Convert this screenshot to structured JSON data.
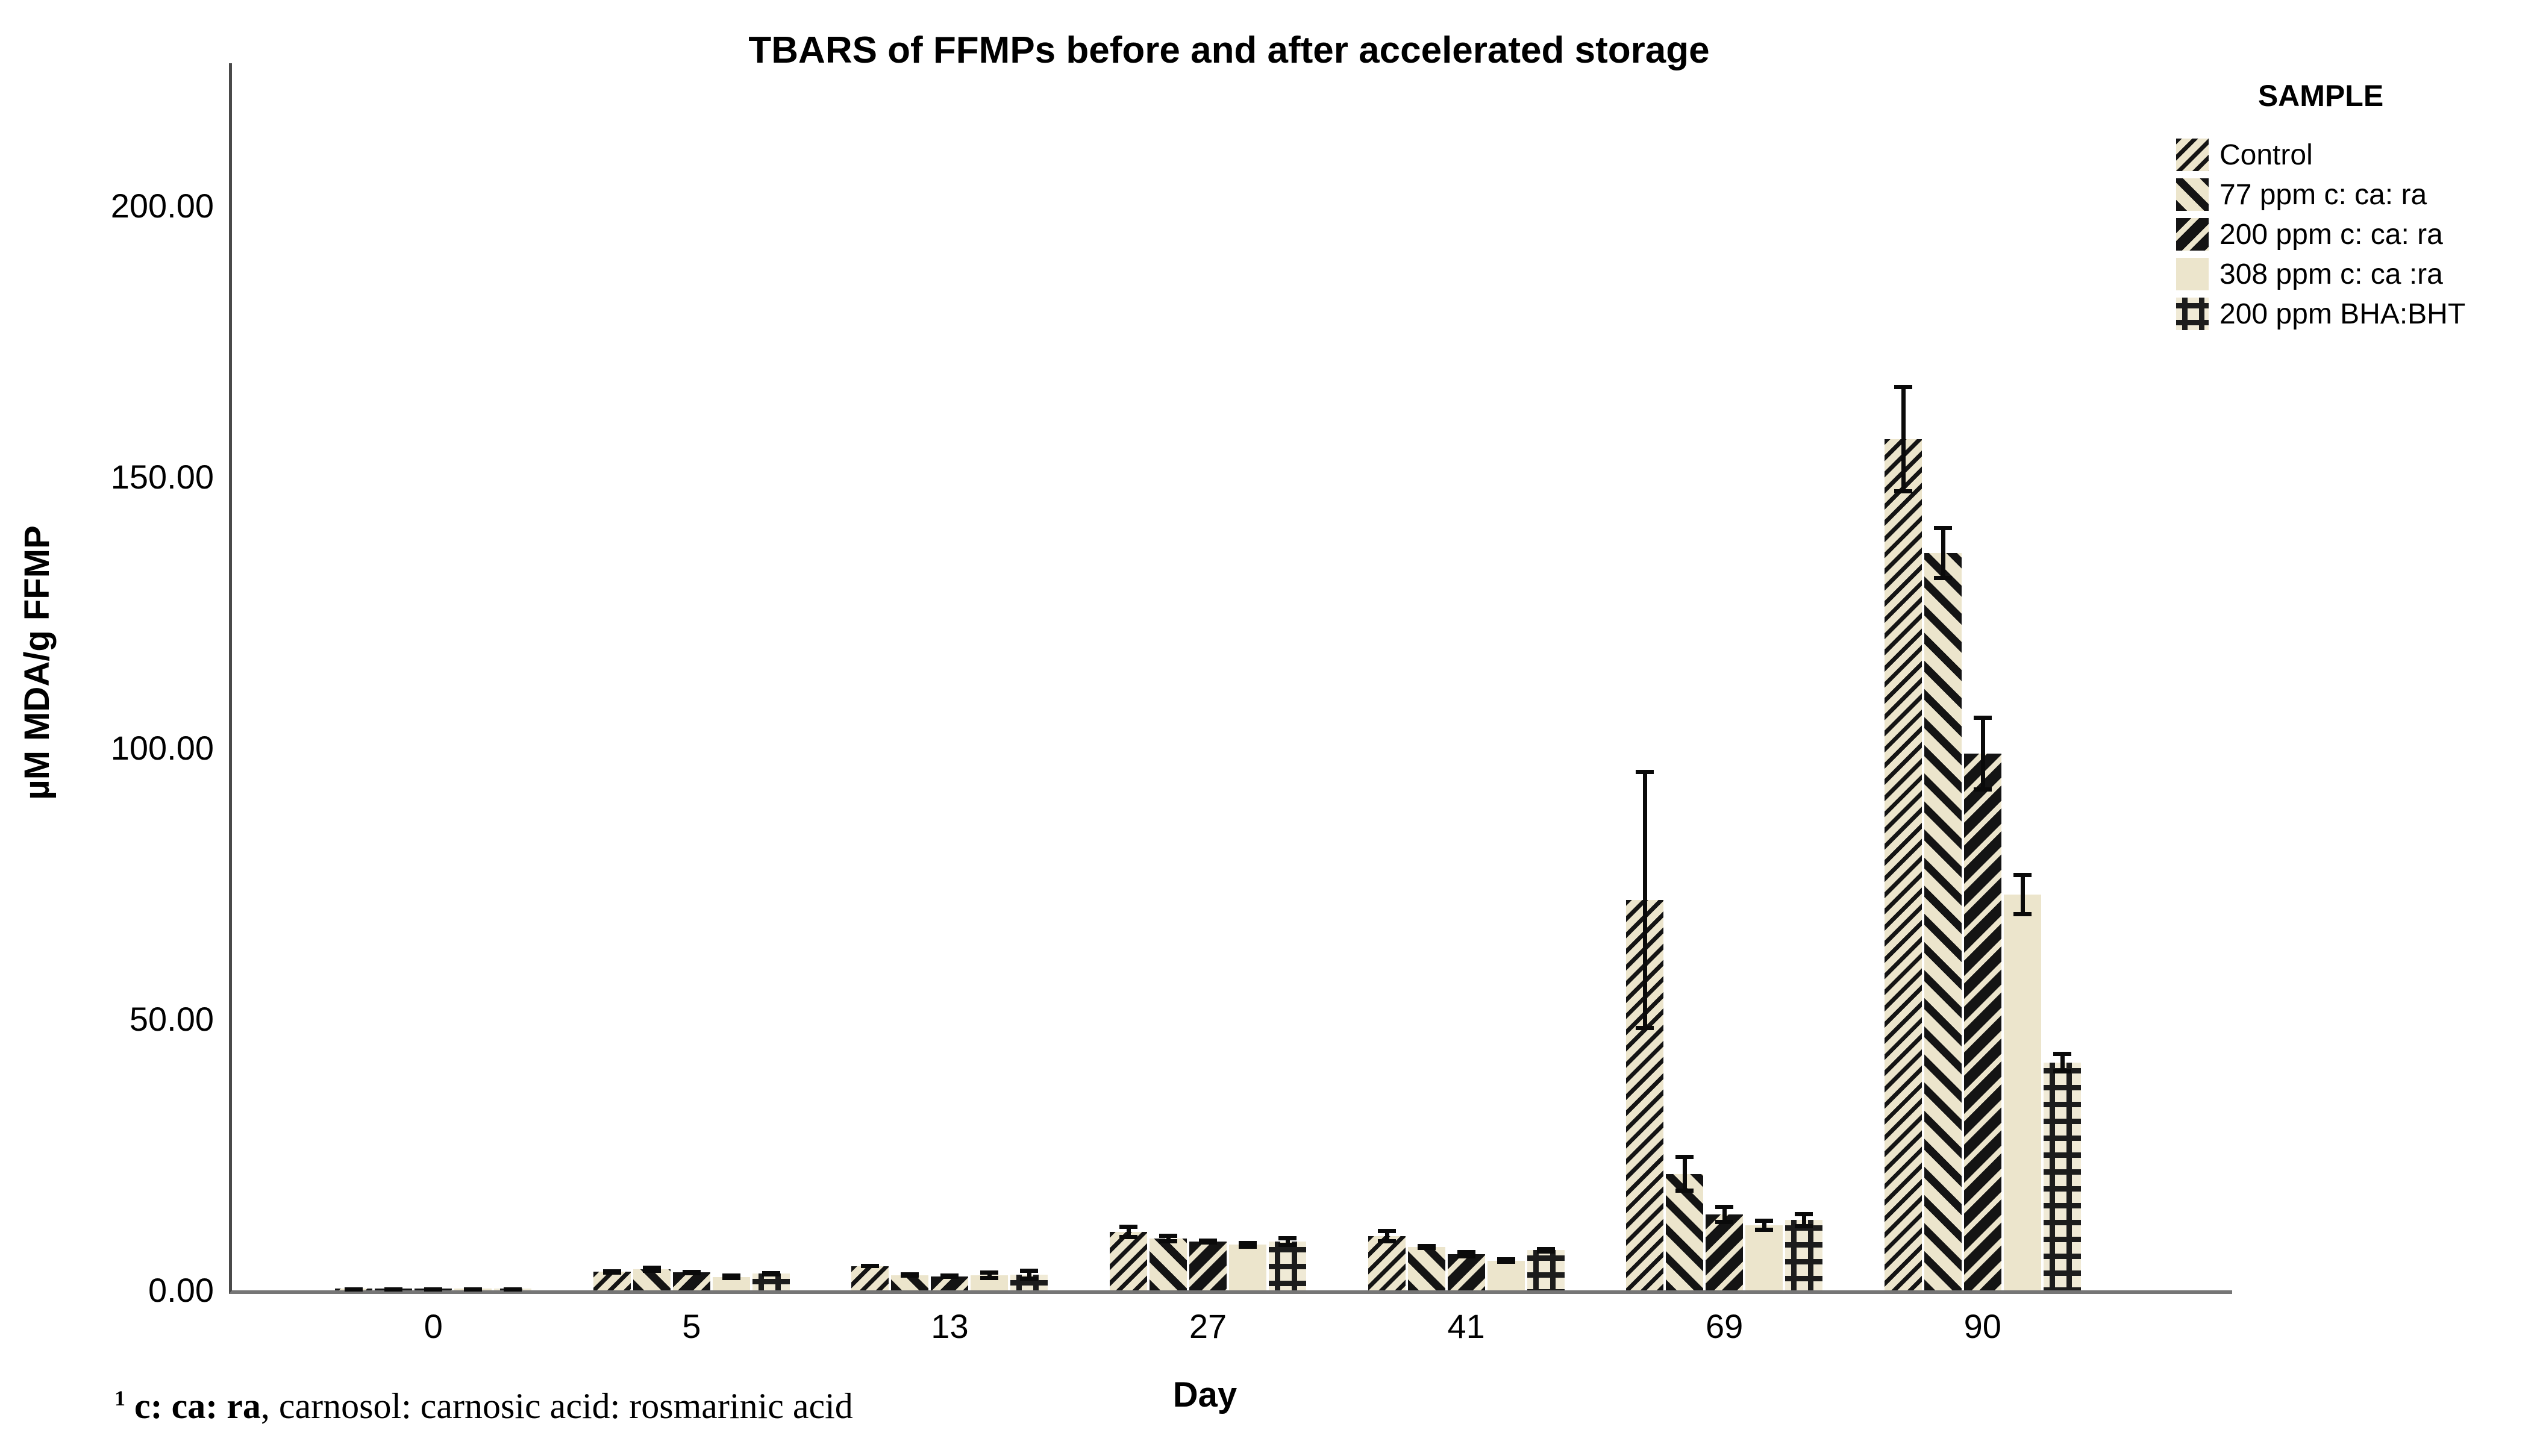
{
  "figure": {
    "background": "#ffffff",
    "colors": {
      "bar_fill": "#ece5cc",
      "bar_ink": "#141414",
      "axis_line": "#6e6e6e",
      "text": "#000000"
    }
  },
  "legend": {
    "header": "SAMPLE",
    "items": [
      {
        "label": "Control",
        "pattern": "thin-diag-down"
      },
      {
        "label": "77 ppm c: ca: ra",
        "pattern": "thick-diag-up"
      },
      {
        "label": "200 ppm c: ca: ra",
        "pattern": "heavy-diag-down"
      },
      {
        "label": "308 ppm c: ca :ra",
        "pattern": "solid"
      },
      {
        "label": "200 ppm BHA:BHT",
        "pattern": "crosshatch"
      }
    ]
  },
  "footnote": {
    "sup": "1",
    "bold": " c: ca: ra",
    "rest": ", carnosol: carnosic acid: rosmarinic acid"
  },
  "chart_data": {
    "type": "bar",
    "title": "TBARS of FFMPs before and after accelerated storage",
    "xlabel": "Day",
    "ylabel": "µM MDA/g FFMP",
    "ylim": [
      0,
      220
    ],
    "grid": false,
    "legend_position": "top-right-outside",
    "error_bars": true,
    "yticks": [
      {
        "value": 0,
        "label": "0.00"
      },
      {
        "value": 50,
        "label": "50.00"
      },
      {
        "value": 100,
        "label": "100.00"
      },
      {
        "value": 150,
        "label": "150.00"
      },
      {
        "value": 200,
        "label": "200.00"
      }
    ],
    "categories": [
      "0",
      "5",
      "13",
      "27",
      "41",
      "69",
      "90"
    ],
    "series": [
      {
        "name": "Control",
        "pattern": "thin-diag-down",
        "values": [
          0.3,
          3.4,
          4.5,
          10.8,
          10.0,
          72,
          157
        ],
        "errors": [
          0.3,
          0.5,
          0.4,
          1.3,
          1.3,
          24,
          10
        ]
      },
      {
        "name": "77 ppm c: ca: ra",
        "pattern": "thick-diag-up",
        "values": [
          0.3,
          3.9,
          2.8,
          9.6,
          8.0,
          21.5,
          136
        ],
        "errors": [
          0.3,
          0.7,
          0.5,
          0.9,
          0.6,
          3.5,
          5
        ]
      },
      {
        "name": "200 ppm c: ca: ra",
        "pattern": "heavy-diag-down",
        "values": [
          0.3,
          3.3,
          2.6,
          9.0,
          6.7,
          14,
          99
        ],
        "errors": [
          0.3,
          0.5,
          0.5,
          0.6,
          0.8,
          1.8,
          7
        ]
      },
      {
        "name": "308 ppm c: ca :ra",
        "pattern": "solid",
        "values": [
          0.3,
          2.5,
          2.8,
          8.4,
          5.5,
          12,
          73
        ],
        "errors": [
          0.3,
          0.6,
          0.9,
          0.7,
          0.6,
          1.2,
          4
        ]
      },
      {
        "name": "200 ppm BHA:BHT",
        "pattern": "crosshatch",
        "values": [
          0.3,
          3.1,
          2.9,
          9.0,
          7.4,
          13,
          42
        ],
        "errors": [
          0.3,
          0.5,
          1.1,
          1.0,
          0.6,
          1.5,
          2
        ]
      }
    ]
  }
}
